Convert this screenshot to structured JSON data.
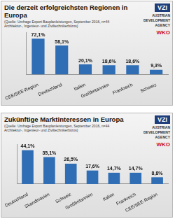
{
  "chart_data": [
    {
      "type": "bar",
      "title": "Die derzeit erfolgreichsten Regionen in Europa",
      "subtitle": "(Quelle: Umfrage Export Bauplanleistungen, September 2016, n=44 Architektur-, Ingenieur- und Ziviltechnikerbüros)",
      "logos": [
        "VZI",
        "AUSTRIAN DEVELOPMENT AGENCY",
        "WKO"
      ],
      "categories": [
        "CEE/SEE-Region",
        "Deutschland",
        "Italien",
        "Großbritannien",
        "Frankreich",
        "Schweiz"
      ],
      "values": [
        72.1,
        58.1,
        20.1,
        18.6,
        18.6,
        9.3
      ],
      "value_labels": [
        "72,1%",
        "58,1%",
        "20,1%",
        "18,6%",
        "18,6%",
        "9,3%"
      ],
      "color": "#2f6db5",
      "ylim": [
        0,
        85
      ],
      "grid": false,
      "data_labels": true,
      "tick_labels": "x"
    },
    {
      "type": "bar",
      "title": "Zukünftige Marktinteressen in Europa",
      "subtitle": "(Quelle: Umfrage Export Bauplanleistungen, September 2016, n=44 Architektur-, Ingenieur- und Ziviltechnikerbüros)",
      "logos": [
        "VZI",
        "AUSTRIAN DEVELOPMENT AGENCY",
        "WKO"
      ],
      "categories": [
        "Deutschland",
        "Skandinavien",
        "Schweiz",
        "Großbritannien",
        "Italien",
        "Frankreich",
        "CEE/SEE-Region"
      ],
      "values": [
        44.1,
        35.1,
        26.5,
        17.6,
        14.7,
        14.7,
        8.8
      ],
      "value_labels": [
        "44,1%",
        "35,1%",
        "26,5%",
        "17,6%",
        "14,7%",
        "14,7%",
        "8,8%"
      ],
      "color": "#2f6db5",
      "ylim": [
        0,
        52
      ],
      "grid": false,
      "data_labels": true,
      "tick_labels": "x"
    }
  ]
}
